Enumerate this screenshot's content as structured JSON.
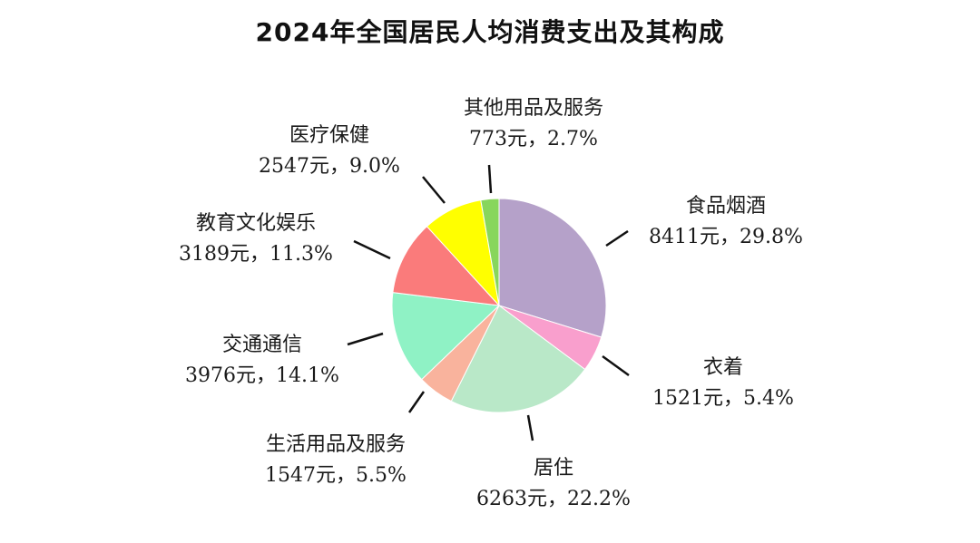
{
  "chart_data": {
    "type": "pie",
    "title": "2024年全国居民人均消费支出及其构成",
    "slices": [
      {
        "name": "食品烟酒",
        "value": 8411,
        "value_label": "8411元，29.8%",
        "percent": 29.8,
        "color": "#b5a1c9"
      },
      {
        "name": "衣着",
        "value": 1521,
        "value_label": "1521元，5.4%",
        "percent": 5.4,
        "color": "#f99fcd"
      },
      {
        "name": "居住",
        "value": 6263,
        "value_label": "6263元，22.2%",
        "percent": 22.2,
        "color": "#b9e8c8"
      },
      {
        "name": "生活用品及服务",
        "value": 1547,
        "value_label": "1547元，5.5%",
        "percent": 5.5,
        "color": "#f9b39d"
      },
      {
        "name": "交通通信",
        "value": 3976,
        "value_label": "3976元，14.1%",
        "percent": 14.1,
        "color": "#8ff2c5"
      },
      {
        "name": "教育文化娱乐",
        "value": 3189,
        "value_label": "3189元，11.3%",
        "percent": 11.3,
        "color": "#fa7b7b"
      },
      {
        "name": "医疗保健",
        "value": 2547,
        "value_label": "2547元，9.0%",
        "percent": 9.0,
        "color": "#ffff00"
      },
      {
        "name": "其他用品及服务",
        "value": 773,
        "value_label": "773元，2.7%",
        "percent": 2.7,
        "color": "#88d65c"
      }
    ]
  }
}
